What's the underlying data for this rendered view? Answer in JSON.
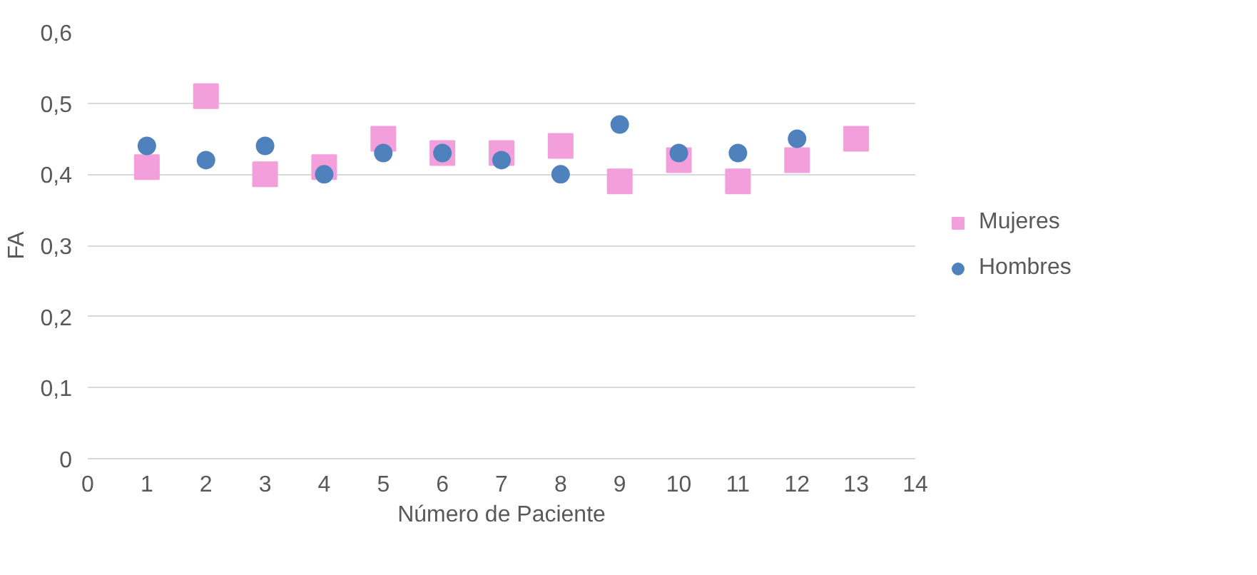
{
  "chart_data": {
    "type": "scatter",
    "xlabel": "Número de Paciente",
    "ylabel": "FA",
    "x": [
      1,
      2,
      3,
      4,
      5,
      6,
      7,
      8,
      9,
      10,
      11,
      12,
      13
    ],
    "series": [
      {
        "name": "Mujeres",
        "color": "#f29fdc",
        "marker": "square",
        "values": [
          0.41,
          0.51,
          0.4,
          0.41,
          0.45,
          0.43,
          0.43,
          0.44,
          0.39,
          0.42,
          0.39,
          0.42,
          0.45
        ]
      },
      {
        "name": "Hombres",
        "color": "#4f81bd",
        "marker": "circle",
        "values": [
          0.44,
          0.42,
          0.44,
          0.4,
          0.43,
          0.43,
          0.42,
          0.4,
          0.47,
          0.43,
          0.43,
          0.45,
          null
        ]
      }
    ],
    "xlim": [
      0,
      14
    ],
    "xticks": [
      0,
      1,
      2,
      3,
      4,
      5,
      6,
      7,
      8,
      9,
      10,
      11,
      12,
      13,
      14
    ],
    "ylim": [
      0,
      0.6
    ],
    "yticks": [
      0,
      {
        "value": 0.1,
        "label": "0,1"
      },
      {
        "value": 0.2,
        "label": "0,2"
      },
      {
        "value": 0.3,
        "label": "0,3"
      },
      {
        "value": 0.4,
        "label": "0,4"
      },
      {
        "value": 0.5,
        "label": "0,5"
      },
      {
        "value": 0.6,
        "label": "0,6"
      }
    ],
    "grid": "y",
    "legend": "right"
  }
}
